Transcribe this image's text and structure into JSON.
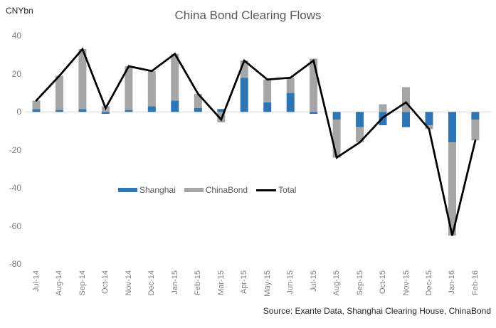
{
  "chart": {
    "unit_label": "CNYbn",
    "title": "China Bond Clearing Flows",
    "source": "Source: Exante Data, Shanghai Clearing House, ChinaBond",
    "legend": {
      "shanghai": "Shanghai",
      "chinabond": "ChinaBond",
      "total": "Total"
    },
    "colors": {
      "shanghai": "#2E75B6",
      "chinabond": "#A6A6A6",
      "total": "#000000",
      "zero_line": "#D9D9D9",
      "axis_text": "#7F7F7F",
      "title_text": "#595959"
    }
  },
  "chart_data": {
    "type": "bar",
    "subtype": "stacked bars with total line overlay",
    "title": "China Bond Clearing Flows",
    "ylabel": "CNYbn",
    "xlabel": "",
    "ylim": [
      -80,
      40
    ],
    "yticks": [
      40,
      20,
      0,
      -20,
      -40,
      -60,
      -80
    ],
    "grid": "zero-line-only",
    "legend_position": "inside bottom-left",
    "categories": [
      "Jul-14",
      "Aug-14",
      "Sep-14",
      "Oct-14",
      "Nov-14",
      "Dec-14",
      "Jan-15",
      "Feb-15",
      "Mar-15",
      "Apr-15",
      "May-15",
      "Jun-15",
      "Jul-15",
      "Aug-15",
      "Sep-15",
      "Oct-15",
      "Nov-15",
      "Dec-15",
      "Jan-16",
      "Feb-16"
    ],
    "series": [
      {
        "name": "Shanghai",
        "render": "bar",
        "color": "#2E75B6",
        "values": [
          1.5,
          1,
          1.5,
          -1,
          1,
          3,
          6,
          2,
          1.5,
          18,
          5,
          10,
          -1,
          -4,
          -8,
          -7,
          -8,
          -7,
          -16,
          -4
        ]
      },
      {
        "name": "ChinaBond",
        "render": "bar",
        "color": "#A6A6A6",
        "values": [
          4.5,
          18,
          31.5,
          3,
          23,
          18.5,
          24.5,
          7.5,
          -5.5,
          9,
          12,
          8,
          28,
          -20,
          -8,
          4,
          13,
          -2,
          -49,
          -11
        ]
      },
      {
        "name": "Total",
        "render": "line",
        "color": "#000000",
        "values": [
          6,
          19,
          33,
          2,
          24,
          21.5,
          30.5,
          9.5,
          -4,
          27,
          17,
          18,
          27,
          -24,
          -16,
          -3,
          5,
          -9,
          -65,
          -15
        ]
      }
    ]
  }
}
